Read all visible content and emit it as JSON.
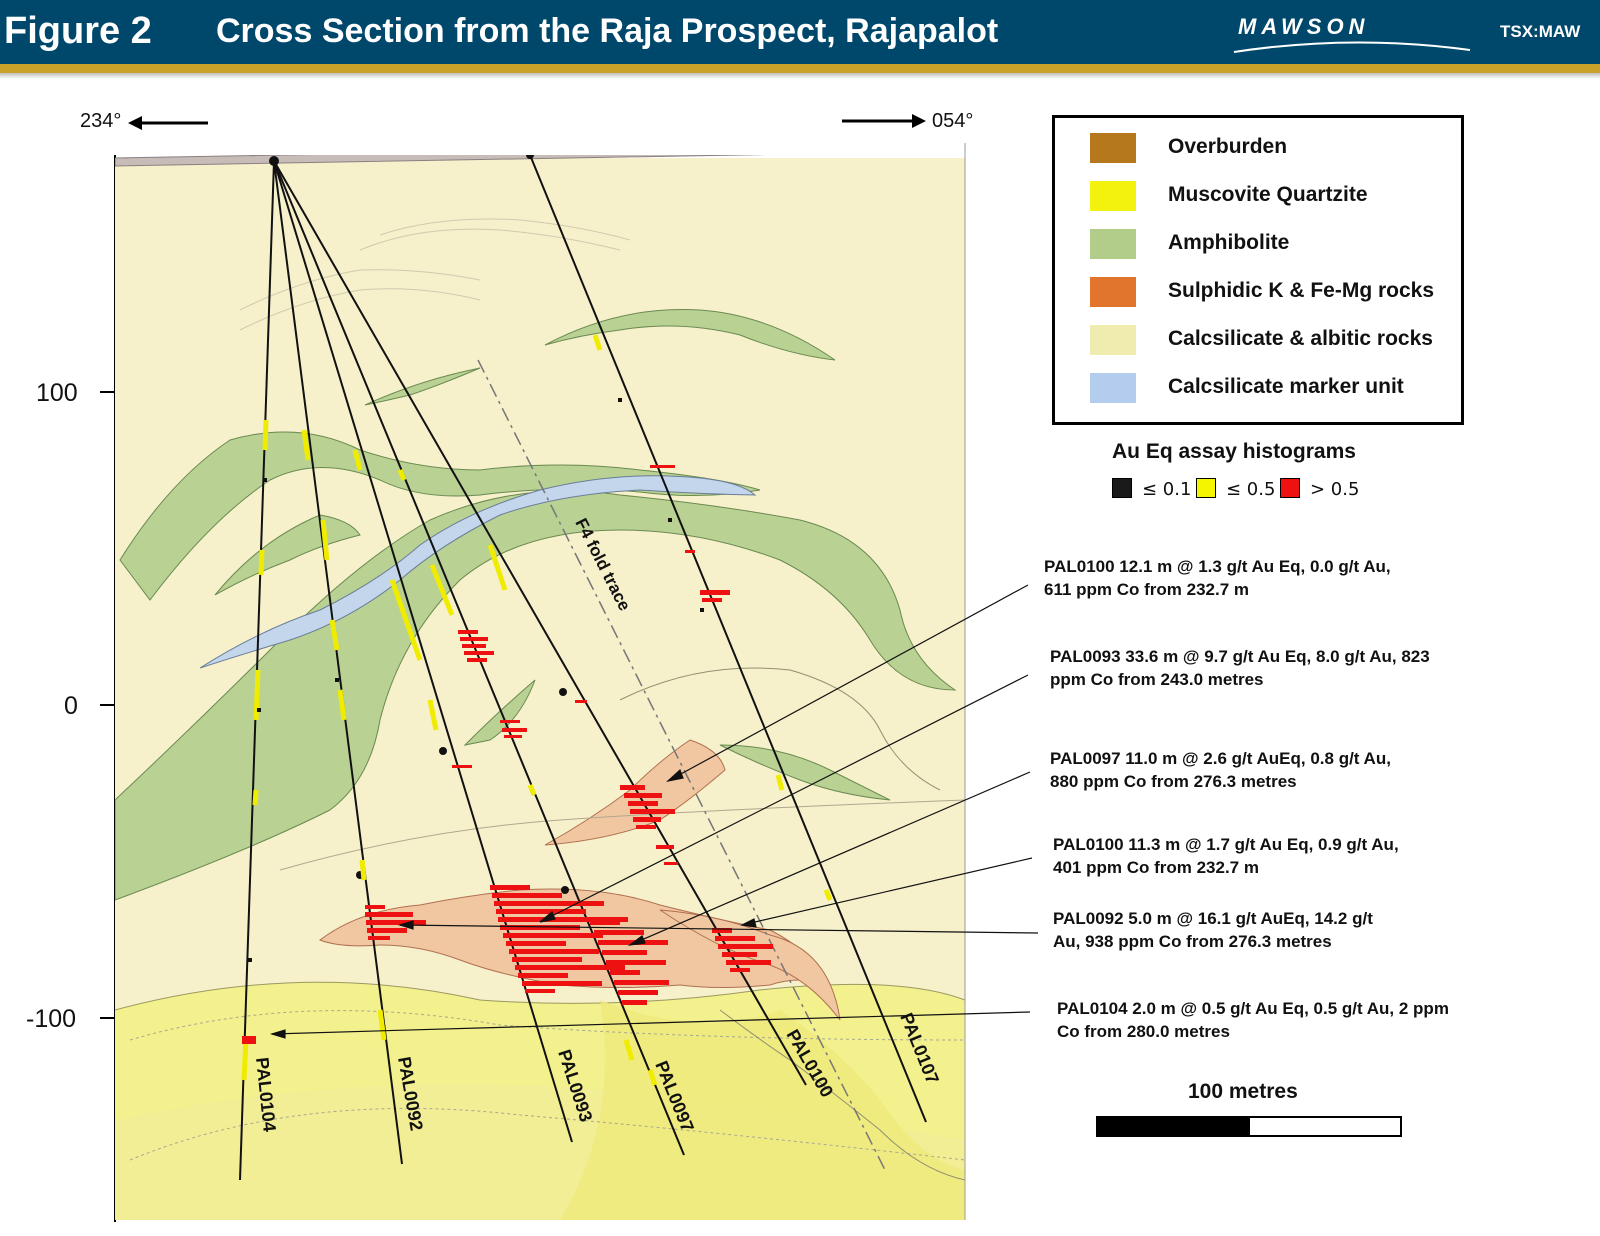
{
  "header": {
    "figure_label": "Figure 2",
    "title": "Cross Section from the Raja Prospect, Rajapalot",
    "logo_text": "MAWSON",
    "ticker": "TSX:MAW"
  },
  "section": {
    "left_direction": "234°",
    "right_direction": "054°",
    "y_axis_ticks": [
      "100",
      "0",
      "-100"
    ],
    "fold_trace_label": "F4 fold trace",
    "drillholes": [
      "PAL0104",
      "PAL0092",
      "PAL0093",
      "PAL0097",
      "PAL0100",
      "PAL0107"
    ]
  },
  "legend": {
    "items": [
      {
        "label": "Overburden",
        "color": "#b5781c"
      },
      {
        "label": "Muscovite Quartzite",
        "color": "#f2f20e"
      },
      {
        "label": "Amphibolite",
        "color": "#b2cc8a"
      },
      {
        "label": "Sulphidic K & Fe-Mg rocks",
        "color": "#e2752d"
      },
      {
        "label": "Calcsilicate & albitic rocks",
        "color": "#f0ecb0"
      },
      {
        "label": "Calcsilicate marker unit",
        "color": "#b4cdee"
      }
    ]
  },
  "assay_legend": {
    "title": "Au Eq assay histograms",
    "items": [
      {
        "label": "≤ 0.1",
        "color": "#1a1a1a"
      },
      {
        "label": "≤ 0.5",
        "color": "#f5f500"
      },
      {
        "label": "> 0.5",
        "color": "#ee1111"
      }
    ]
  },
  "annotations": [
    {
      "line1": "PAL0100  12.1 m @ 1.3 g/t Au Eq, 0.0 g/t Au,",
      "line2": "611 ppm Co from 232.7 m"
    },
    {
      "line1": "PAL0093 33.6 m @ 9.7 g/t Au Eq, 8.0 g/t Au, 823",
      "line2": "ppm Co from 243.0 metres"
    },
    {
      "line1": "PAL0097 11.0 m @ 2.6 g/t AuEq, 0.8 g/t Au,",
      "line2": "880 ppm Co   from 276.3 metres"
    },
    {
      "line1": "PAL0100 11.3 m @ 1.7 g/t Au Eq, 0.9 g/t Au,",
      "line2": "401 ppm Co from 232.7 m"
    },
    {
      "line1": "PAL0092  5.0 m @ 16.1 g/t AuEq, 14.2 g/t",
      "line2": "Au, 938 ppm Co from 276.3 metres"
    },
    {
      "line1": "PAL0104 2.0 m @ 0.5 g/t Au Eq, 0.5 g/t Au, 2 ppm",
      "line2": "Co from 280.0 metres"
    }
  ],
  "scale": {
    "label": "100 metres"
  }
}
